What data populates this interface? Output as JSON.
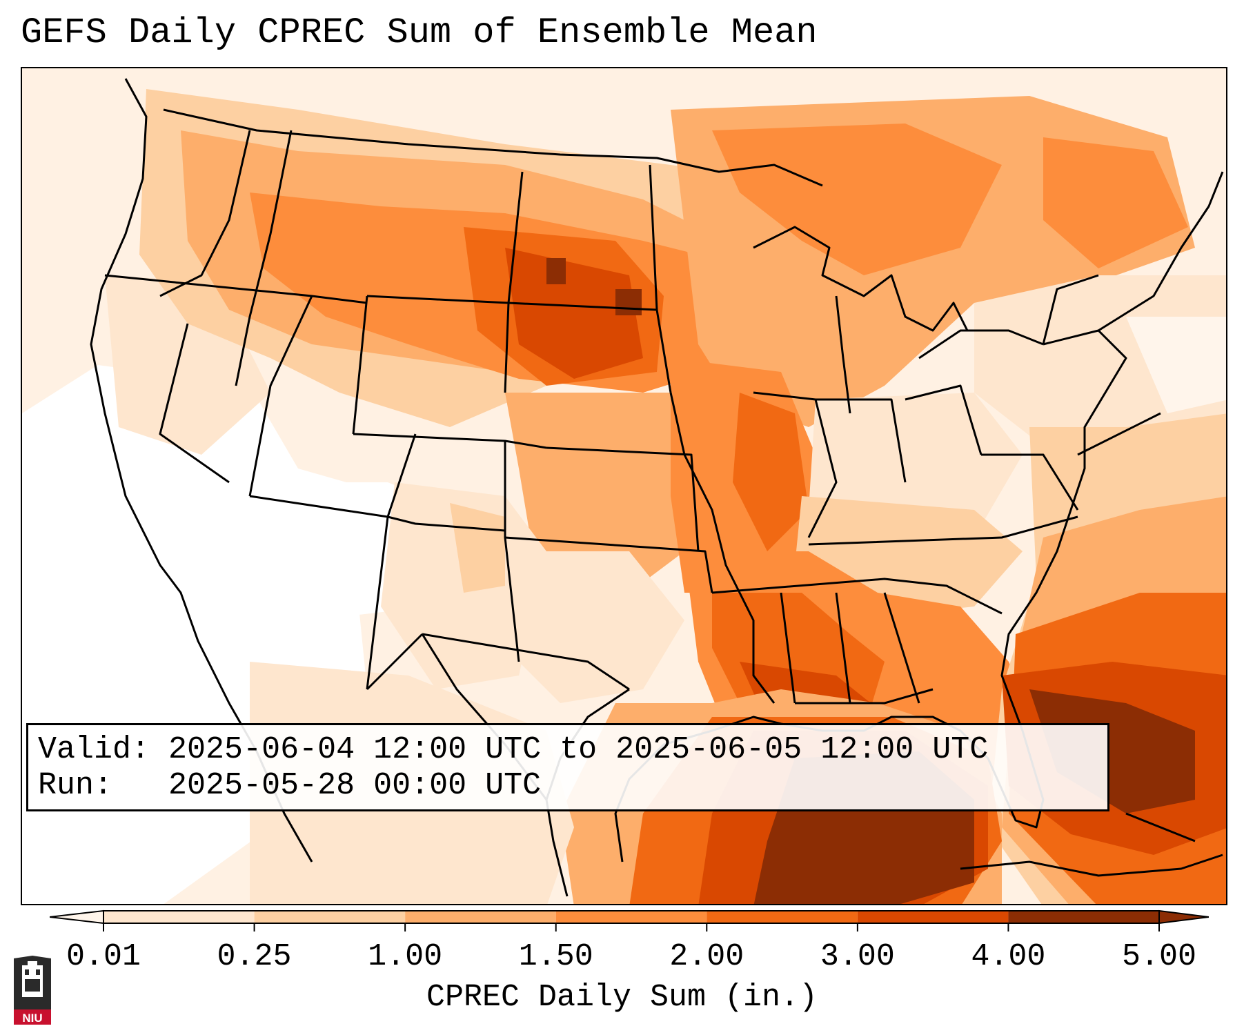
{
  "title": "GEFS Daily CPREC Sum of Ensemble Mean",
  "info": {
    "valid_label": "Valid:",
    "valid_value": "2025-06-04 12:00 UTC to 2025-06-05 12:00 UTC",
    "run_label": "Run:",
    "run_value": "2025-05-28 00:00 UTC"
  },
  "colorbar": {
    "label": "CPREC Daily Sum (in.)",
    "ticks": [
      "0.01",
      "0.25",
      "1.00",
      "1.50",
      "2.00",
      "3.00",
      "4.00",
      "5.00"
    ],
    "colors": [
      "#fff5eb",
      "#fee6ce",
      "#fdd0a2",
      "#fdae6b",
      "#fd8d3c",
      "#f16913",
      "#d94801",
      "#8c2d04"
    ],
    "extend": "both"
  },
  "logo": {
    "text": "NIU",
    "icon": "university-tower-icon"
  },
  "map": {
    "region": "Contiguous United States",
    "field": "CPREC daily sum, GEFS ensemble mean",
    "heaviest_areas": [
      "Gulf of Mexico",
      "Florida",
      "Western Atlantic"
    ],
    "moderate_areas": [
      "Northern Plains",
      "Upper Midwest",
      "Lower Mississippi Valley",
      "Southeast"
    ],
    "dry_areas": [
      "Desert Southwest",
      "California",
      "Great Basin"
    ]
  }
}
